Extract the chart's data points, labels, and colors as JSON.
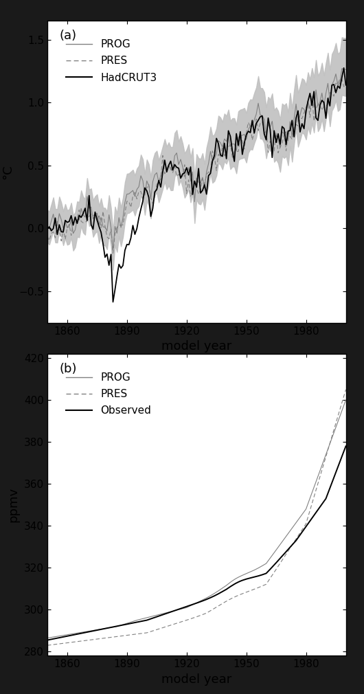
{
  "title_a": "(a)",
  "title_b": "(b)",
  "xlabel": "model year",
  "ylabel_a": "°C",
  "ylabel_b": "ppmv",
  "xlim": [
    1850,
    2000
  ],
  "ylim_a": [
    -0.75,
    1.65
  ],
  "ylim_b": [
    278,
    422
  ],
  "xticks": [
    1860,
    1890,
    1920,
    1950,
    1980
  ],
  "yticks_a": [
    -0.5,
    0.0,
    0.5,
    1.0,
    1.5
  ],
  "yticks_b": [
    280,
    300,
    320,
    340,
    360,
    380,
    400,
    420
  ],
  "background_color": "#1a1a1a",
  "panel_bg": "#ffffff",
  "legend_a": [
    "PROG",
    "PRES",
    "HadCRUT3"
  ],
  "legend_b": [
    "PROG",
    "PRES",
    "Observed"
  ],
  "shade_color": "#c0c0c0",
  "prog_color": "#808080",
  "pres_color": "#808080",
  "hadcrut_color": "#000000",
  "obs_color": "#000000",
  "prog_lw": 0.8,
  "pres_lw": 0.8,
  "had_lw": 1.3,
  "obs_lw": 1.4,
  "tick_labelsize": 11,
  "axis_labelsize": 13,
  "legend_fontsize": 11,
  "figsize": [
    5.3,
    10.1
  ],
  "dpi": 100
}
